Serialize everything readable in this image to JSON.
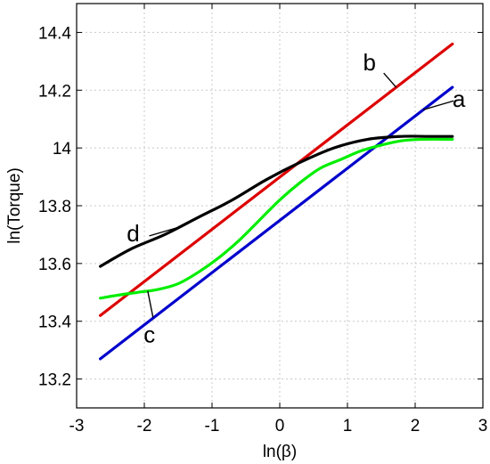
{
  "chart_data": {
    "type": "line",
    "title": "",
    "xlabel": "ln(β)",
    "ylabel": "ln(Torque)",
    "xlim": [
      -3,
      3
    ],
    "ylim": [
      13.1,
      14.5
    ],
    "xticks": [
      -3,
      -2,
      -1,
      0,
      1,
      2,
      3
    ],
    "yticks": [
      13.2,
      13.4,
      13.6,
      13.8,
      14.0,
      14.2,
      14.4
    ],
    "xtick_labels": [
      "-3",
      "-2",
      "-1",
      "0",
      "1",
      "2",
      "3"
    ],
    "ytick_labels": [
      "13.2",
      "13.4",
      "13.6",
      "13.8",
      "14",
      "14.2",
      "14.4"
    ],
    "grid": true,
    "series": [
      {
        "name": "a",
        "color": "#0000cc",
        "x": [
          -2.65,
          2.55
        ],
        "y": [
          13.27,
          14.21
        ]
      },
      {
        "name": "b",
        "color": "#dd0000",
        "x": [
          -2.65,
          2.55
        ],
        "y": [
          13.42,
          14.36
        ]
      },
      {
        "name": "c",
        "color": "#00ee00",
        "x": [
          -2.65,
          -2.4,
          -2.1,
          -1.8,
          -1.5,
          -1.2,
          -0.9,
          -0.6,
          -0.3,
          0.0,
          0.3,
          0.6,
          0.9,
          1.2,
          1.5,
          1.8,
          2.1,
          2.55
        ],
        "y": [
          13.48,
          13.49,
          13.5,
          13.51,
          13.53,
          13.57,
          13.62,
          13.68,
          13.75,
          13.82,
          13.88,
          13.93,
          13.96,
          13.99,
          14.01,
          14.025,
          14.03,
          14.03
        ]
      },
      {
        "name": "d",
        "color": "#000000",
        "x": [
          -2.65,
          -2.2,
          -1.7,
          -1.2,
          -0.7,
          -0.2,
          0.3,
          0.8,
          1.3,
          1.8,
          2.2,
          2.55
        ],
        "y": [
          13.59,
          13.65,
          13.7,
          13.76,
          13.82,
          13.89,
          13.95,
          14.0,
          14.03,
          14.04,
          14.04,
          14.04
        ]
      }
    ],
    "annotations": [
      {
        "text": "a",
        "series": "a",
        "at_x": 2.12
      },
      {
        "text": "b",
        "series": "b",
        "at_x": 1.72
      },
      {
        "text": "c",
        "series": "c",
        "at_x": -1.95
      },
      {
        "text": "d",
        "series": "d",
        "at_x": -1.48
      }
    ]
  }
}
